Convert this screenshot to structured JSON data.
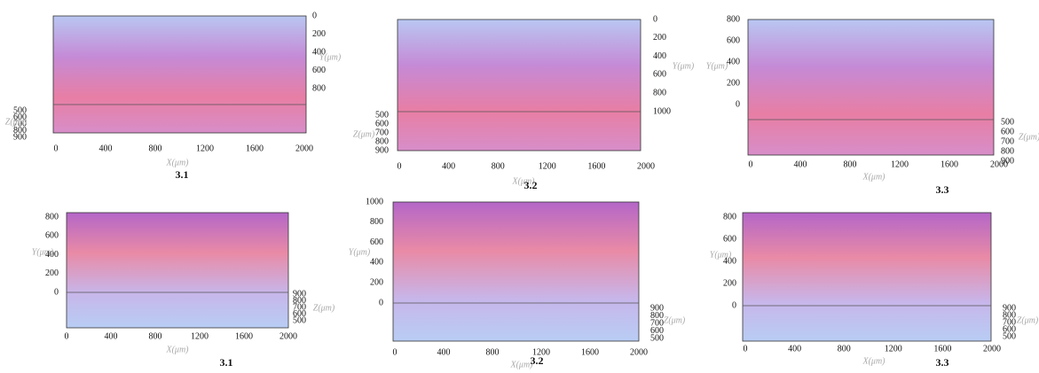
{
  "panels": [
    {
      "caption": "3.1",
      "x_label": "X(μm)",
      "y_label": "Y(μm)",
      "z_label": "Z(μm)",
      "xticks": [
        0,
        400,
        800,
        1200,
        1600,
        2000
      ],
      "yticks": [
        0,
        200,
        400,
        600,
        800
      ],
      "zticks": [
        500,
        600,
        700,
        800,
        900
      ]
    },
    {
      "caption": "3.2",
      "x_label": "X(μm)",
      "y_label": "Y(μm)",
      "z_label": "Z(μm)",
      "xticks": [
        0,
        400,
        800,
        1200,
        1600,
        2000
      ],
      "yticks": [
        0,
        200,
        400,
        600,
        800,
        1000
      ],
      "zticks": [
        500,
        600,
        700,
        800,
        900
      ]
    },
    {
      "caption": "3.3",
      "x_label": "X(μm)",
      "y_label": "Y(μm)",
      "z_label": "Z(μm)",
      "xticks": [
        0,
        400,
        800,
        1200,
        1600,
        2000
      ],
      "yticks": [
        0,
        200,
        400,
        600,
        800
      ],
      "zticks": [
        500,
        600,
        700,
        800,
        900
      ]
    },
    {
      "caption": "3.1",
      "x_label": "X(μm)",
      "y_label": "Y(μm)",
      "z_label": "Z(μm)",
      "xticks": [
        0,
        400,
        800,
        1200,
        1600,
        2000
      ],
      "yticks": [
        0,
        200,
        400,
        600,
        800
      ],
      "zticks": [
        900,
        800,
        700,
        600,
        500
      ]
    },
    {
      "caption": "3.2",
      "x_label": "X(μm)",
      "y_label": "Y(μm)",
      "z_label": "Z(μm)",
      "xticks": [
        0,
        400,
        800,
        1200,
        1600,
        2000
      ],
      "yticks": [
        0,
        200,
        400,
        600,
        800,
        1000
      ],
      "zticks": [
        900,
        800,
        700,
        600,
        500
      ]
    },
    {
      "caption": "3.3",
      "x_label": "X(μm)",
      "y_label": "Y(μm)",
      "z_label": "Z(μm)",
      "xticks": [
        0,
        400,
        800,
        1200,
        1600,
        2000
      ],
      "yticks": [
        0,
        200,
        400,
        600,
        800
      ],
      "zticks": [
        900,
        800,
        700,
        600,
        500
      ]
    }
  ]
}
